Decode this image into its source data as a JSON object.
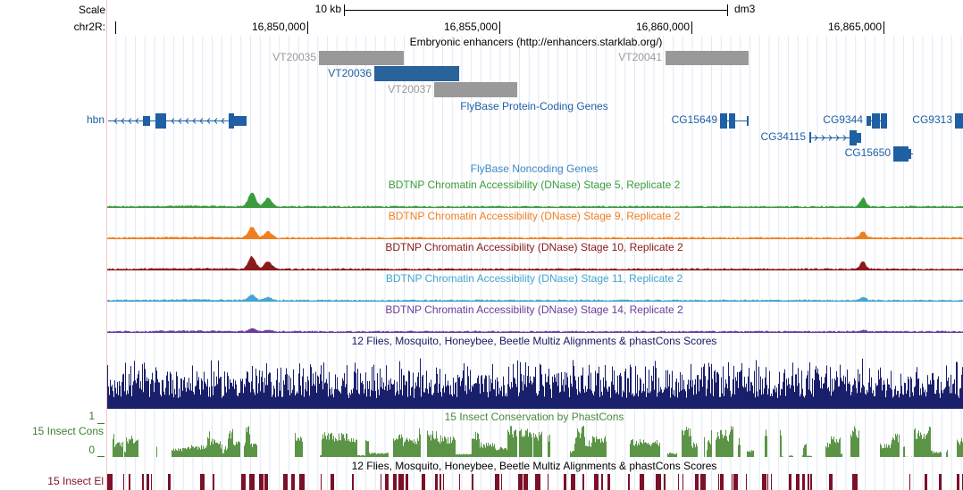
{
  "header": {
    "scale_label": "Scale",
    "scale_bar": "10 kb",
    "assembly": "dm3",
    "chromosome": "chr2R:",
    "positions": [
      "16,850,000",
      "16,855,000",
      "16,860,000",
      "16,865,000"
    ]
  },
  "tracks": {
    "enhancers": {
      "title": "Embryonic enhancers (http://enhancers.starklab.org/)",
      "items": [
        "VT20035",
        "VT20036",
        "VT20037",
        "VT20041"
      ]
    },
    "protein_coding": {
      "title": "FlyBase Protein-Coding Genes",
      "genes": [
        "hbn",
        "CG15649",
        "CG9344",
        "CG9313",
        "CG34115",
        "CG15650"
      ]
    },
    "noncoding": {
      "title": "FlyBase Noncoding Genes"
    },
    "dnase": [
      "BDTNP Chromatin Accessibility (DNase) Stage 5, Replicate 2",
      "BDTNP Chromatin Accessibility (DNase) Stage 9, Replicate 2",
      "BDTNP Chromatin Accessibility (DNase) Stage 10, Replicate 2",
      "BDTNP Chromatin Accessibility (DNase) Stage 11, Replicate 2",
      "BDTNP Chromatin Accessibility (DNase) Stage 14, Replicate 2"
    ],
    "multiz": {
      "title": "12 Flies, Mosquito, Honeybee, Beetle Multiz Alignments & phastCons Scores"
    },
    "phastcons": {
      "side_label": "15 Insect Cons",
      "title": "15 Insect Conservation by PhastCons",
      "max": 1,
      "min": 0
    },
    "elements": {
      "title": "12 Flies, Mosquito, Honeybee, Beetle Multiz Alignments & phastCons Scores",
      "side_label": "15 Insect El"
    }
  }
}
